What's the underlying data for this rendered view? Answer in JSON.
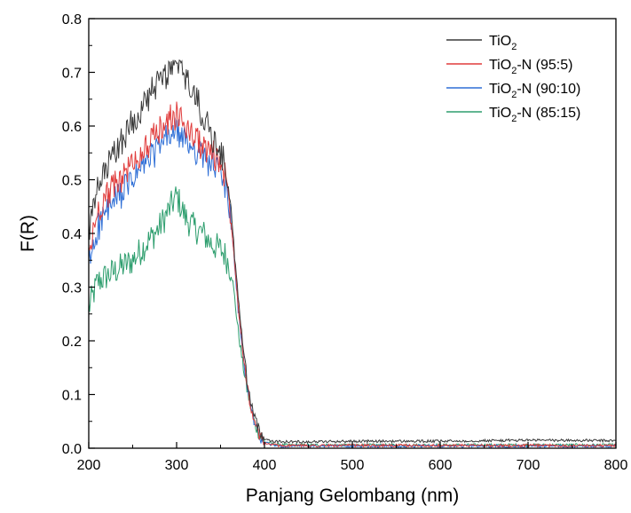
{
  "chart_data": {
    "type": "line",
    "title": "",
    "xlabel": "Panjang Gelombang (nm)",
    "ylabel": "F(R)",
    "xlim": [
      200,
      800
    ],
    "ylim": [
      0,
      0.8
    ],
    "xticks": [
      200,
      300,
      400,
      500,
      600,
      700,
      800
    ],
    "yticks": [
      0.0,
      0.1,
      0.2,
      0.3,
      0.4,
      0.5,
      0.6,
      0.7,
      0.8
    ],
    "ytick_labels": [
      "0.0",
      "0.1",
      "0.2",
      "0.3",
      "0.4",
      "0.5",
      "0.6",
      "0.7",
      "0.8"
    ],
    "grid": false,
    "legend_position": "top-right",
    "series": [
      {
        "name": "TiO2-N (85:15)",
        "name_parts": {
          "pre": "TiO",
          "sub": "2",
          "post": "-N (85:15)"
        },
        "color": "#2e9e6e",
        "x": [
          200,
          210,
          220,
          230,
          240,
          250,
          260,
          270,
          280,
          290,
          300,
          310,
          320,
          330,
          340,
          350,
          355,
          360,
          363,
          366,
          370,
          375,
          380,
          385,
          390,
          395,
          400,
          410,
          420,
          450,
          500,
          600,
          700,
          800
        ],
        "y": [
          0.26,
          0.31,
          0.32,
          0.33,
          0.34,
          0.35,
          0.37,
          0.39,
          0.41,
          0.44,
          0.47,
          0.43,
          0.41,
          0.4,
          0.38,
          0.37,
          0.36,
          0.34,
          0.32,
          0.28,
          0.22,
          0.16,
          0.11,
          0.07,
          0.04,
          0.02,
          0.012,
          0.008,
          0.006,
          0.006,
          0.006,
          0.006,
          0.006,
          0.006
        ]
      },
      {
        "name": "TiO2-N (90:10)",
        "name_parts": {
          "pre": "TiO",
          "sub": "2",
          "post": "-N (90:10)"
        },
        "color": "#2f6fd6",
        "x": [
          200,
          210,
          220,
          230,
          240,
          250,
          260,
          270,
          280,
          290,
          300,
          310,
          320,
          330,
          340,
          350,
          355,
          360,
          363,
          366,
          370,
          375,
          380,
          385,
          390,
          395,
          400,
          410,
          420,
          450,
          500,
          600,
          700,
          800
        ],
        "y": [
          0.34,
          0.41,
          0.44,
          0.46,
          0.48,
          0.5,
          0.52,
          0.54,
          0.56,
          0.58,
          0.59,
          0.57,
          0.56,
          0.54,
          0.53,
          0.51,
          0.49,
          0.45,
          0.4,
          0.34,
          0.26,
          0.18,
          0.12,
          0.07,
          0.04,
          0.02,
          0.01,
          0.006,
          0.004,
          0.004,
          0.004,
          0.004,
          0.004,
          0.004
        ]
      },
      {
        "name": "TiO2-N (95:5)",
        "name_parts": {
          "pre": "TiO",
          "sub": "2",
          "post": "-N (95:5)"
        },
        "color": "#e03c3c",
        "x": [
          200,
          210,
          220,
          230,
          240,
          250,
          260,
          270,
          280,
          290,
          300,
          310,
          320,
          330,
          340,
          350,
          355,
          360,
          363,
          366,
          370,
          375,
          380,
          385,
          390,
          395,
          400,
          410,
          420,
          450,
          500,
          600,
          700,
          800
        ],
        "y": [
          0.36,
          0.44,
          0.47,
          0.49,
          0.51,
          0.53,
          0.55,
          0.57,
          0.59,
          0.61,
          0.62,
          0.6,
          0.58,
          0.56,
          0.55,
          0.53,
          0.51,
          0.46,
          0.41,
          0.35,
          0.27,
          0.19,
          0.12,
          0.07,
          0.04,
          0.02,
          0.01,
          0.006,
          0.005,
          0.005,
          0.005,
          0.005,
          0.005,
          0.005
        ]
      },
      {
        "name": "TiO2",
        "name_parts": {
          "pre": "TiO",
          "sub": "2",
          "post": ""
        },
        "color": "#3a3a3a",
        "x": [
          200,
          210,
          220,
          230,
          240,
          250,
          260,
          270,
          280,
          290,
          300,
          310,
          320,
          330,
          340,
          350,
          355,
          360,
          363,
          366,
          370,
          375,
          380,
          385,
          390,
          395,
          400,
          410,
          420,
          450,
          500,
          600,
          700,
          800
        ],
        "y": [
          0.4,
          0.48,
          0.52,
          0.55,
          0.58,
          0.61,
          0.63,
          0.66,
          0.68,
          0.7,
          0.71,
          0.69,
          0.66,
          0.62,
          0.58,
          0.55,
          0.53,
          0.48,
          0.42,
          0.36,
          0.28,
          0.2,
          0.13,
          0.08,
          0.05,
          0.03,
          0.018,
          0.013,
          0.012,
          0.012,
          0.013,
          0.013,
          0.015,
          0.014
        ]
      }
    ],
    "legend_order": [
      "TiO2",
      "TiO2-N (95:5)",
      "TiO2-N (90:10)",
      "TiO2-N (85:15)"
    ]
  }
}
